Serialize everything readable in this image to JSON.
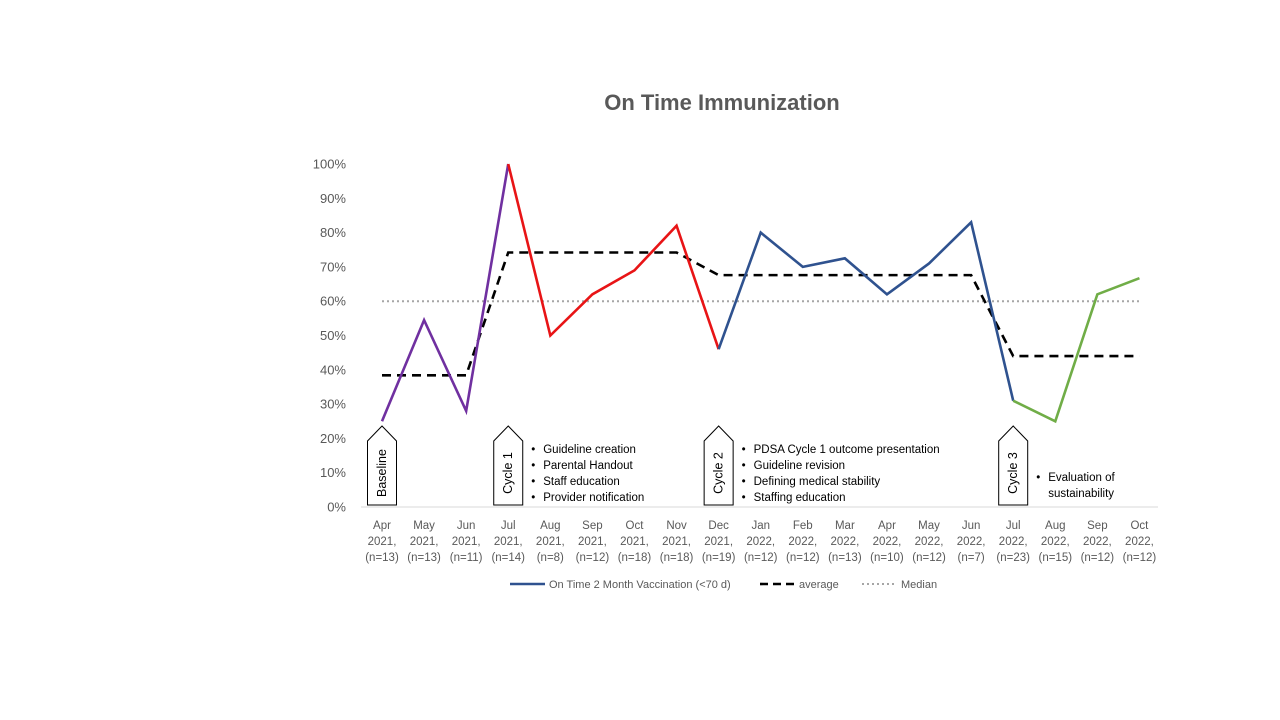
{
  "chart_data": {
    "type": "line",
    "title": "On Time Immunization",
    "xlabel": "",
    "ylabel": "",
    "ylim": [
      0,
      1
    ],
    "y_ticks": [
      "0%",
      "10%",
      "20%",
      "30%",
      "40%",
      "50%",
      "60%",
      "70%",
      "80%",
      "90%",
      "100%"
    ],
    "categories": [
      [
        "Apr",
        "2021,",
        "(n=13)"
      ],
      [
        "May",
        "2021,",
        "(n=13)"
      ],
      [
        "Jun",
        "2021,",
        "(n=11)"
      ],
      [
        "Jul",
        "2021,",
        "(n=14)"
      ],
      [
        "Aug",
        "2021,",
        "(n=8)"
      ],
      [
        "Sep",
        "2021,",
        "(n=12)"
      ],
      [
        "Oct",
        "2021,",
        "(n=18)"
      ],
      [
        "Nov",
        "2021,",
        "(n=18)"
      ],
      [
        "Dec",
        "2021,",
        "(n=19)"
      ],
      [
        "Jan",
        "2022,",
        "(n=12)"
      ],
      [
        "Feb",
        "2022,",
        "(n=12)"
      ],
      [
        "Mar",
        "2022,",
        "(n=13)"
      ],
      [
        "Apr",
        "2022,",
        "(n=10)"
      ],
      [
        "May",
        "2022,",
        "(n=12)"
      ],
      [
        "Jun",
        "2022,",
        "(n=7)"
      ],
      [
        "Jul",
        "2022,",
        "(n=23)"
      ],
      [
        "Aug",
        "2022,",
        "(n=15)"
      ],
      [
        "Sep",
        "2022,",
        "(n=12)"
      ],
      [
        "Oct",
        "2022,",
        "(n=12)"
      ]
    ],
    "series": [
      {
        "name": "On Time 2 Month Vaccination (<70 d)",
        "values": [
          0.25,
          0.545,
          0.28,
          1.0,
          0.5,
          0.62,
          0.69,
          0.82,
          0.46,
          0.8,
          0.7,
          0.725,
          0.62,
          0.71,
          0.83,
          0.31,
          0.25,
          0.62,
          0.667
        ],
        "color": "#2F528F",
        "segments": [
          {
            "from": 0,
            "to": 3,
            "color": "#7030A0"
          },
          {
            "from": 3,
            "to": 8,
            "color": "#E81416"
          },
          {
            "from": 8,
            "to": 15,
            "color": "#2F528F"
          },
          {
            "from": 15,
            "to": 18,
            "color": "#70AD47"
          }
        ]
      },
      {
        "name": "average",
        "values": [
          0.384,
          0.384,
          0.384,
          0.742,
          0.742,
          0.742,
          0.742,
          0.742,
          0.676,
          0.676,
          0.676,
          0.676,
          0.676,
          0.676,
          0.676,
          0.44,
          0.44,
          0.44,
          0.44
        ],
        "color": "#000000",
        "style": "dashed"
      },
      {
        "name": "Median",
        "values": [
          0.6,
          0.6,
          0.6,
          0.6,
          0.6,
          0.6,
          0.6,
          0.6,
          0.6,
          0.6,
          0.6,
          0.6,
          0.6,
          0.6,
          0.6,
          0.6,
          0.6,
          0.6,
          0.6
        ],
        "color": "#A6A6A6",
        "style": "dotted"
      }
    ],
    "grid": false,
    "legend_position": "bottom",
    "cycle_markers": [
      {
        "label": "Baseline",
        "index": 0,
        "bullets": []
      },
      {
        "label": "Cycle 1",
        "index": 3,
        "bullets": [
          "Guideline creation",
          "Parental Handout",
          "Staff education",
          "Provider notification"
        ]
      },
      {
        "label": "Cycle 2",
        "index": 8,
        "bullets": [
          "PDSA Cycle 1 outcome presentation",
          "Guideline revision",
          "Defining medical stability",
          "Staffing education"
        ]
      },
      {
        "label": "Cycle 3",
        "index": 15,
        "bullets": [
          "Evaluation of",
          "sustainability"
        ]
      }
    ]
  }
}
